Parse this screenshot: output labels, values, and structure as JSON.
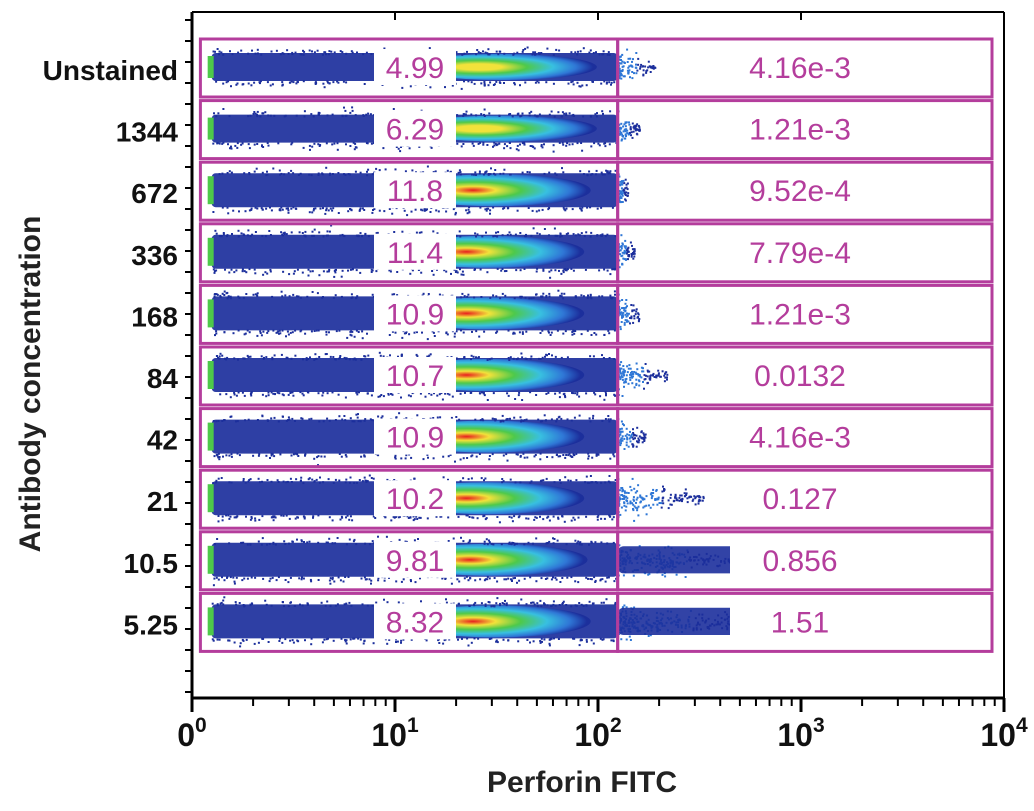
{
  "chart_data": {
    "type": "scatter",
    "subtype": "flow-cytometry-density-plots",
    "xlabel": "Perforin FITC",
    "ylabel": "Antibody concentration",
    "xscale": "log",
    "xlim": [
      1,
      10000
    ],
    "x_ticks": [
      {
        "value": 1,
        "base": "0",
        "exp": "0"
      },
      {
        "value": 10,
        "base": "10",
        "exp": "1"
      },
      {
        "value": 100,
        "base": "10",
        "exp": "2"
      },
      {
        "value": 1000,
        "base": "10",
        "exp": "3"
      },
      {
        "value": 10000,
        "base": "10",
        "exp": "4"
      }
    ],
    "gate_boundary_x": 125,
    "series": [
      {
        "label": "Unstained",
        "left_gate_pct": "4.99",
        "right_gate_pct": "4.16e-3",
        "peak_x": 30,
        "tail_max_x": 190
      },
      {
        "label": "1344",
        "left_gate_pct": "6.29",
        "right_gate_pct": "1.21e-3",
        "peak_x": 30,
        "tail_max_x": 160
      },
      {
        "label": "672",
        "left_gate_pct": "11.8",
        "right_gate_pct": "9.52e-4",
        "peak_x": 28,
        "tail_max_x": 140
      },
      {
        "label": "336",
        "left_gate_pct": "11.4",
        "right_gate_pct": "7.79e-4",
        "peak_x": 26,
        "tail_max_x": 150
      },
      {
        "label": "168",
        "left_gate_pct": "10.9",
        "right_gate_pct": "1.21e-3",
        "peak_x": 26,
        "tail_max_x": 160
      },
      {
        "label": "84",
        "left_gate_pct": "10.7",
        "right_gate_pct": "0.0132",
        "peak_x": 26,
        "tail_max_x": 220
      },
      {
        "label": "42",
        "left_gate_pct": "10.9",
        "right_gate_pct": "4.16e-3",
        "peak_x": 26,
        "tail_max_x": 170
      },
      {
        "label": "21",
        "left_gate_pct": "10.2",
        "right_gate_pct": "0.127",
        "peak_x": 26,
        "tail_max_x": 330
      },
      {
        "label": "10.5",
        "left_gate_pct": "9.81",
        "right_gate_pct": "0.856",
        "peak_x": 27,
        "tail_max_x": 600
      },
      {
        "label": "5.25",
        "left_gate_pct": "8.32",
        "right_gate_pct": "1.51",
        "peak_x": 28,
        "tail_max_x": 650
      }
    ]
  },
  "colors": {
    "gate": "#b43d9c",
    "gate_text": "#b43d9c",
    "axis": "#000000",
    "density_low": "#1c2f9c",
    "density_mid_low": "#2f77d6",
    "density_mid": "#38c0e0",
    "density_mid_high": "#4ec94a",
    "density_high": "#f2e23a",
    "density_peak": "#e81e1e"
  }
}
